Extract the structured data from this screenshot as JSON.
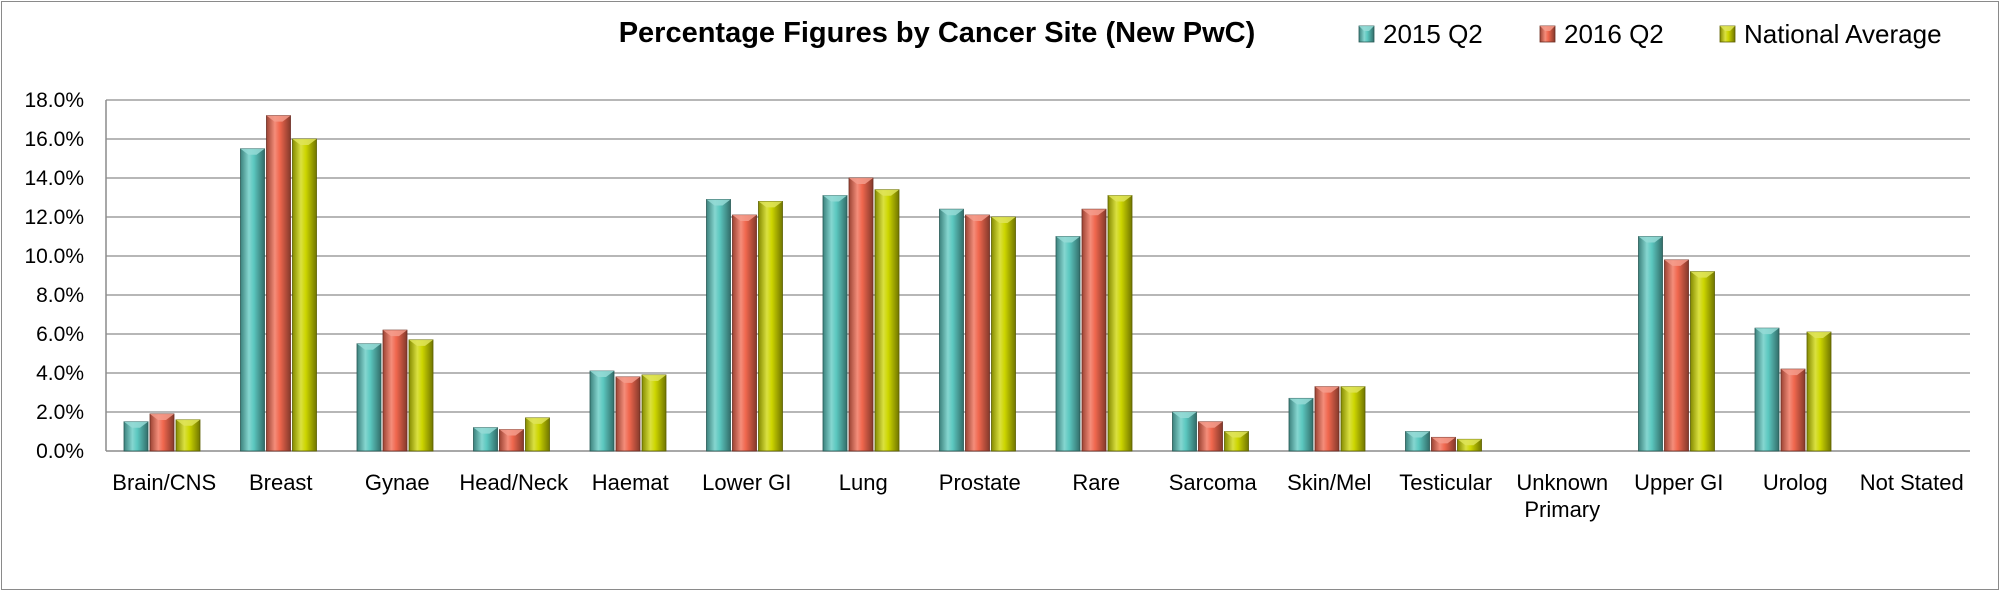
{
  "chart_data": {
    "type": "bar",
    "title": "Percentage Figures by Cancer Site (New PwC)",
    "xlabel": "",
    "ylabel": "",
    "ylim": [
      0,
      18
    ],
    "y_ticks": [
      "0.0%",
      "2.0%",
      "4.0%",
      "6.0%",
      "8.0%",
      "10.0%",
      "12.0%",
      "14.0%",
      "16.0%",
      "18.0%"
    ],
    "grid": true,
    "legend_position": "top-right",
    "categories": [
      "Brain/CNS",
      "Breast",
      "Gynae",
      "Head/Neck",
      "Haemat",
      "Lower GI",
      "Lung",
      "Prostate",
      "Rare",
      "Sarcoma",
      "Skin/Mel",
      "Testicular",
      "Unknown Primary",
      "Upper GI",
      "Urolog",
      "Not Stated"
    ],
    "series": [
      {
        "name": "2015 Q2",
        "color": "#5cc8c0",
        "values": [
          1.5,
          15.5,
          5.5,
          1.2,
          4.1,
          12.9,
          13.1,
          12.4,
          11.0,
          2.0,
          2.7,
          1.0,
          0.0,
          11.0,
          6.3,
          0.0
        ]
      },
      {
        "name": "2016 Q2",
        "color": "#f0674e",
        "values": [
          1.9,
          17.2,
          6.2,
          1.1,
          3.8,
          12.1,
          14.0,
          12.1,
          12.4,
          1.5,
          3.3,
          0.7,
          0.0,
          9.8,
          4.2,
          0.0
        ]
      },
      {
        "name": "National Average",
        "color": "#cdd600",
        "values": [
          1.6,
          16.0,
          5.7,
          1.7,
          3.9,
          12.8,
          13.4,
          12.0,
          13.1,
          1.0,
          3.3,
          0.6,
          0.0,
          9.2,
          6.1,
          0.0
        ]
      }
    ]
  }
}
